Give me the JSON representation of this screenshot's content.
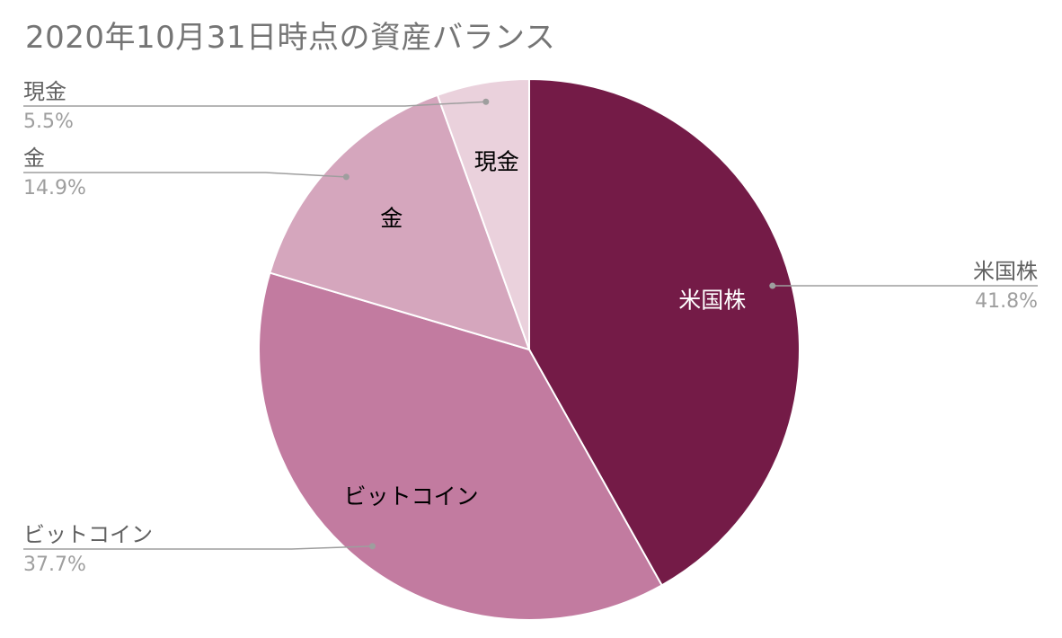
{
  "chart_data": {
    "type": "pie",
    "title": "2020年10月31日時点の資産バランス",
    "start_angle_deg": 0,
    "direction": "clockwise",
    "slices": [
      {
        "label": "米国株",
        "value": 41.8,
        "value_text": "41.8%",
        "color": "#741b47",
        "label_color": "#ffffff",
        "callout_side": "right"
      },
      {
        "label": "ビットコイン",
        "value": 37.7,
        "value_text": "37.7%",
        "color": "#c27ba0",
        "label_color": "#000000",
        "callout_side": "left"
      },
      {
        "label": "金",
        "value": 14.9,
        "value_text": "14.9%",
        "color": "#d5a6bd",
        "label_color": "#000000",
        "callout_side": "left"
      },
      {
        "label": "現金",
        "value": 5.5,
        "value_text": "5.5%",
        "color": "#ead1dc",
        "label_color": "#000000",
        "callout_side": "left"
      }
    ],
    "legend": "callouts"
  }
}
